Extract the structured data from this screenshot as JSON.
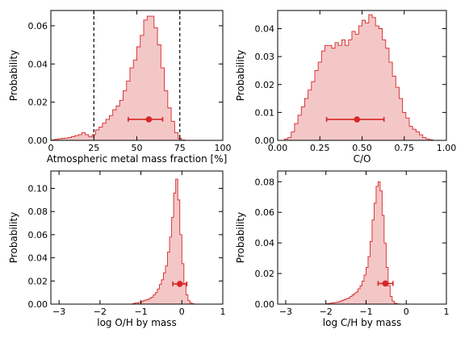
{
  "colors": {
    "hist_line": "#d62728",
    "hist_fill": "#f4c7c7",
    "marker": "#d62728",
    "axis": "#000000",
    "dashed": "#000000"
  },
  "chart_data": [
    {
      "type": "histogram",
      "xlabel": "Atmospheric metal mass fraction [%]",
      "ylabel": "Probability",
      "xlim": [
        0,
        100
      ],
      "ylim": [
        0,
        0.068
      ],
      "xticks": [
        0,
        25,
        50,
        75,
        100
      ],
      "xtick_labels": [
        "0",
        "25",
        "50",
        "75",
        "100"
      ],
      "yticks": [
        0,
        0.02,
        0.04,
        0.06
      ],
      "ytick_labels": [
        "0.00",
        "0.02",
        "0.04",
        "0.06"
      ],
      "bins": {
        "start": 0,
        "width": 2,
        "values": [
          0.0002,
          0.0005,
          0.0008,
          0.001,
          0.0012,
          0.0015,
          0.002,
          0.0025,
          0.003,
          0.004,
          0.003,
          0.002,
          0.003,
          0.0055,
          0.007,
          0.009,
          0.011,
          0.013,
          0.016,
          0.018,
          0.021,
          0.026,
          0.031,
          0.038,
          0.042,
          0.049,
          0.055,
          0.063,
          0.065,
          0.065,
          0.059,
          0.05,
          0.038,
          0.026,
          0.017,
          0.01,
          0.004,
          0.001,
          0.0002,
          0,
          0,
          0,
          0,
          0,
          0,
          0,
          0,
          0,
          0,
          0
        ]
      },
      "point": {
        "x": 57,
        "y": 0.011,
        "xerr_low": 45,
        "xerr_high": 65
      },
      "vlines": [
        25,
        75
      ]
    },
    {
      "type": "histogram",
      "xlabel": "C/O",
      "ylabel": "Probability",
      "xlim": [
        0,
        1
      ],
      "ylim": [
        0,
        0.0465
      ],
      "xticks": [
        0,
        0.25,
        0.5,
        0.75,
        1.0
      ],
      "xtick_labels": [
        "0.00",
        "0.25",
        "0.50",
        "0.75",
        "1.00"
      ],
      "yticks": [
        0,
        0.01,
        0.02,
        0.03,
        0.04
      ],
      "ytick_labels": [
        "0.00",
        "0.01",
        "0.02",
        "0.03",
        "0.04"
      ],
      "bins": {
        "start": 0,
        "width": 0.02,
        "values": [
          0,
          0,
          0.0005,
          0.001,
          0.003,
          0.006,
          0.009,
          0.012,
          0.015,
          0.018,
          0.021,
          0.025,
          0.028,
          0.032,
          0.034,
          0.034,
          0.033,
          0.035,
          0.034,
          0.036,
          0.034,
          0.036,
          0.039,
          0.038,
          0.041,
          0.043,
          0.042,
          0.045,
          0.044,
          0.041,
          0.04,
          0.036,
          0.033,
          0.028,
          0.023,
          0.019,
          0.015,
          0.01,
          0.008,
          0.005,
          0.004,
          0.003,
          0.002,
          0.001,
          0.0005,
          0.0002,
          0,
          0,
          0,
          0
        ]
      },
      "point": {
        "x": 0.47,
        "y": 0.0075,
        "xerr_low": 0.29,
        "xerr_high": 0.63
      }
    },
    {
      "type": "histogram",
      "xlabel": "log O/H by mass",
      "ylabel": "Probability",
      "xlim": [
        -3.2,
        1.0
      ],
      "ylim": [
        0,
        0.115
      ],
      "xticks": [
        -3,
        -2,
        -1,
        0,
        1
      ],
      "xtick_labels": [
        "−3",
        "−2",
        "−1",
        "0",
        "1"
      ],
      "yticks": [
        0,
        0.02,
        0.04,
        0.06,
        0.08,
        0.1
      ],
      "ytick_labels": [
        "0.00",
        "0.02",
        "0.04",
        "0.06",
        "0.08",
        "0.10"
      ],
      "bins": {
        "start": -1.2,
        "width": 0.05,
        "values": [
          0.0005,
          0.001,
          0.001,
          0.0015,
          0.002,
          0.003,
          0.0035,
          0.004,
          0.005,
          0.006,
          0.008,
          0.01,
          0.013,
          0.017,
          0.021,
          0.027,
          0.033,
          0.045,
          0.058,
          0.075,
          0.096,
          0.108,
          0.09,
          0.06,
          0.035,
          0.018,
          0.008,
          0.003,
          0.001,
          0.0003,
          0
        ]
      },
      "point": {
        "x": -0.05,
        "y": 0.0175,
        "xerr_low": -0.22,
        "xerr_high": 0.12
      }
    },
    {
      "type": "histogram",
      "xlabel": "log C/H by mass",
      "ylabel": "Probability",
      "xlim": [
        -3.2,
        1.0
      ],
      "ylim": [
        0,
        0.087
      ],
      "xticks": [
        -3,
        -2,
        -1,
        0,
        1
      ],
      "xtick_labels": [
        "−3",
        "−2",
        "−1",
        "0",
        "1"
      ],
      "yticks": [
        0,
        0.02,
        0.04,
        0.06,
        0.08
      ],
      "ytick_labels": [
        "0.00",
        "0.02",
        "0.04",
        "0.06",
        "0.08"
      ],
      "bins": {
        "start": -2.0,
        "width": 0.05,
        "values": [
          0.0002,
          0.0004,
          0.0006,
          0.0008,
          0.001,
          0.0012,
          0.0015,
          0.002,
          0.0025,
          0.003,
          0.0035,
          0.004,
          0.005,
          0.006,
          0.007,
          0.008,
          0.01,
          0.012,
          0.015,
          0.019,
          0.024,
          0.031,
          0.041,
          0.055,
          0.066,
          0.077,
          0.08,
          0.074,
          0.058,
          0.04,
          0.024,
          0.012,
          0.005,
          0.002,
          0.0006,
          0.0002,
          0.0001,
          0,
          0,
          0,
          0
        ]
      },
      "point": {
        "x": -0.52,
        "y": 0.0135,
        "xerr_low": -0.7,
        "xerr_high": -0.33
      }
    }
  ]
}
